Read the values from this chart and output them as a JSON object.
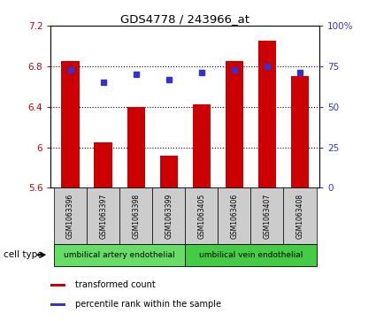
{
  "title": "GDS4778 / 243966_at",
  "samples": [
    "GSM1063396",
    "GSM1063397",
    "GSM1063398",
    "GSM1063399",
    "GSM1063405",
    "GSM1063406",
    "GSM1063407",
    "GSM1063408"
  ],
  "transformed_counts": [
    6.85,
    6.05,
    6.4,
    5.92,
    6.42,
    6.85,
    7.05,
    6.7
  ],
  "percentile_ranks": [
    73,
    65,
    70,
    67,
    71,
    73,
    75,
    71
  ],
  "ylim_left": [
    5.6,
    7.2
  ],
  "ylim_right": [
    0,
    100
  ],
  "yticks_left": [
    5.6,
    6.0,
    6.4,
    6.8,
    7.2
  ],
  "ytick_labels_left": [
    "5.6",
    "6",
    "6.4",
    "6.8",
    "7.2"
  ],
  "yticks_right": [
    0,
    25,
    50,
    75,
    100
  ],
  "ytick_labels_right": [
    "0",
    "25",
    "50",
    "75",
    "100%"
  ],
  "bar_color": "#cc0000",
  "dot_color": "#3333cc",
  "bar_bottom": 5.6,
  "bar_width": 0.55,
  "grid_yticks": [
    6.0,
    6.4,
    6.8
  ],
  "cell_type_label": "cell type",
  "ct_group1_label": "umbilical artery endothelial",
  "ct_group2_label": "umbilical vein endothelial",
  "ct_color1": "#66dd66",
  "ct_color2": "#44cc44",
  "sample_box_color": "#cccccc",
  "legend_bar_label": "transformed count",
  "legend_dot_label": "percentile rank within the sample"
}
